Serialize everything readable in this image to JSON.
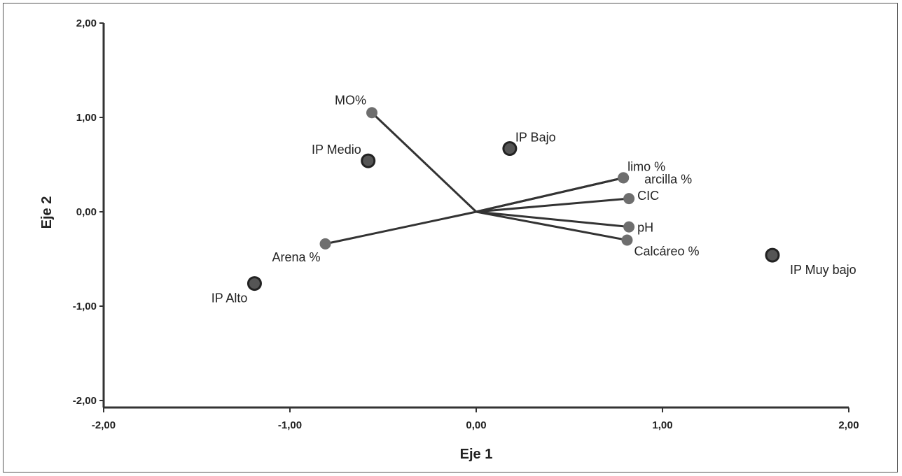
{
  "chart_data": {
    "type": "scatter",
    "title": "",
    "xlabel": "Eje 1",
    "ylabel": "Eje 2",
    "xlim": [
      -2,
      2
    ],
    "ylim": [
      -2,
      2
    ],
    "x_ticks": [
      "-2,00",
      "-1,00",
      "0,00",
      "1,00",
      "2,00"
    ],
    "y_ticks": [
      "2,00",
      "1,00",
      "0,00",
      "-1,00",
      "-2,00"
    ],
    "x_tick_values": [
      -2,
      -1,
      0,
      1,
      2
    ],
    "y_tick_values": [
      2,
      1,
      0,
      -1,
      -2
    ],
    "grid": false,
    "variables": [
      {
        "label": "MO%",
        "x": -0.56,
        "y": 1.05
      },
      {
        "label": "limo %",
        "x": 0.79,
        "y": 0.36
      },
      {
        "label": "arcilla %",
        "x": 0.79,
        "y": 0.36
      },
      {
        "label": "CIC",
        "x": 0.82,
        "y": 0.14
      },
      {
        "label": "pH",
        "x": 0.82,
        "y": -0.16
      },
      {
        "label": "Calcáreo %",
        "x": 0.81,
        "y": -0.3
      },
      {
        "label": "Arena %",
        "x": -0.81,
        "y": -0.34
      }
    ],
    "categories": [
      {
        "label": "IP Medio",
        "x": -0.58,
        "y": 0.54
      },
      {
        "label": "IP Bajo",
        "x": 0.18,
        "y": 0.67
      },
      {
        "label": "IP Muy bajo",
        "x": 1.59,
        "y": -0.46
      },
      {
        "label": "IP Alto",
        "x": -1.19,
        "y": -0.76
      }
    ],
    "colors": {
      "axis": "#333333",
      "vector": "#333333",
      "variable_point": "#6e6e6e",
      "category_point": "#555555",
      "category_stroke": "#222222"
    }
  }
}
